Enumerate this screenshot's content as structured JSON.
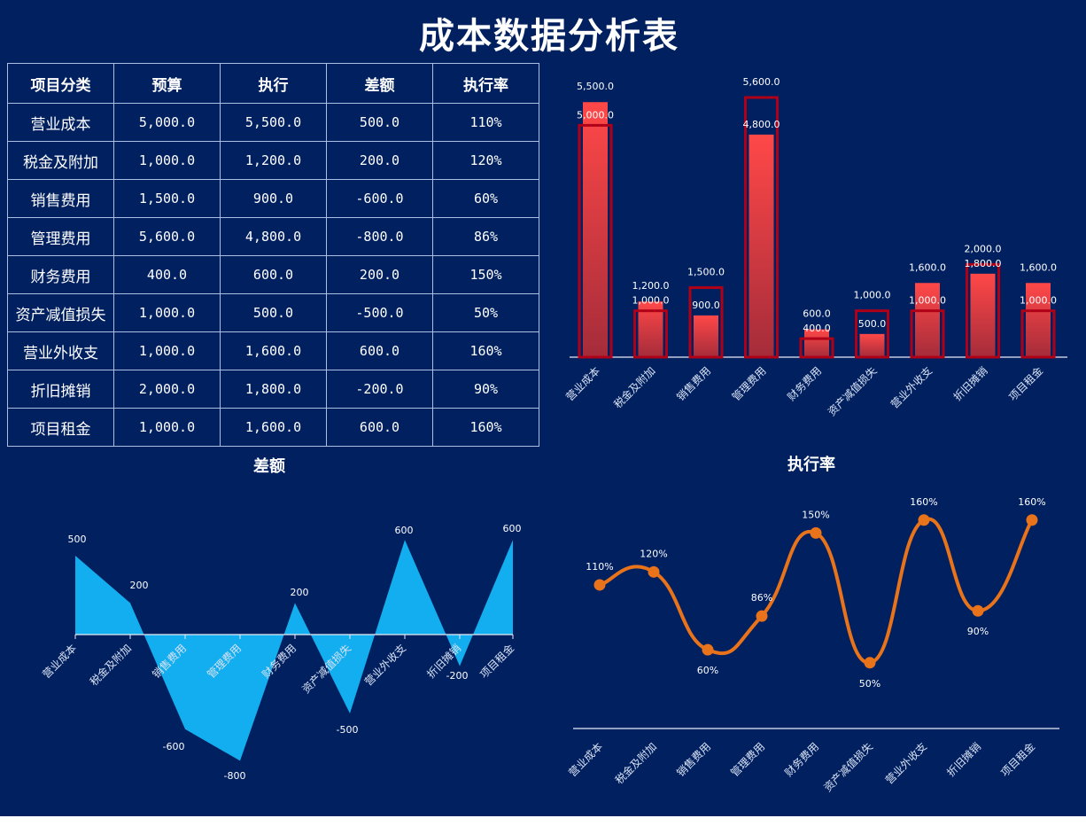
{
  "page": {
    "title": "成本数据分析表",
    "background": "#012060"
  },
  "table": {
    "headers": [
      "项目分类",
      "预算",
      "执行",
      "差额",
      "执行率"
    ],
    "rows": [
      {
        "category": "营业成本",
        "budget": "5,000.0",
        "actual": "5,500.0",
        "diff": "500.0",
        "rate": "110%"
      },
      {
        "category": "税金及附加",
        "budget": "1,000.0",
        "actual": "1,200.0",
        "diff": "200.0",
        "rate": "120%"
      },
      {
        "category": "销售费用",
        "budget": "1,500.0",
        "actual": "900.0",
        "diff": "-600.0",
        "rate": "60%"
      },
      {
        "category": "管理费用",
        "budget": "5,600.0",
        "actual": "4,800.0",
        "diff": "-800.0",
        "rate": "86%"
      },
      {
        "category": "财务费用",
        "budget": "400.0",
        "actual": "600.0",
        "diff": "200.0",
        "rate": "150%"
      },
      {
        "category": "资产减值损失",
        "budget": "1,000.0",
        "actual": "500.0",
        "diff": "-500.0",
        "rate": "50%"
      },
      {
        "category": "营业外收支",
        "budget": "1,000.0",
        "actual": "1,600.0",
        "diff": "600.0",
        "rate": "160%"
      },
      {
        "category": "折旧摊销",
        "budget": "2,000.0",
        "actual": "1,800.0",
        "diff": "-200.0",
        "rate": "90%"
      },
      {
        "category": "项目租金",
        "budget": "1,000.0",
        "actual": "1,600.0",
        "diff": "600.0",
        "rate": "160%"
      }
    ]
  },
  "chart_data": [
    {
      "type": "bar",
      "title": "",
      "categories": [
        "营业成本",
        "税金及附加",
        "销售费用",
        "管理费用",
        "财务费用",
        "资产减值损失",
        "营业外收支",
        "折旧摊销",
        "项目租金"
      ],
      "series": [
        {
          "name": "执行",
          "values": [
            5500,
            1200,
            900,
            4800,
            600,
            500,
            1600,
            1800,
            1600
          ],
          "labels": [
            "5,500.0",
            "1,200.0",
            "900.0",
            "4,800.0",
            "600.0",
            "500.0",
            "1,600.0",
            "1,800.0",
            "1,600.0"
          ],
          "style": "filled gradient",
          "color": "#ff4848"
        },
        {
          "name": "预算",
          "values": [
            5000,
            1000,
            1500,
            5600,
            400,
            1000,
            1000,
            2000,
            1000
          ],
          "labels": [
            "5,000.0",
            "1,000.0",
            "1,500.0",
            "5,600.0",
            "400.0",
            "1,000.0",
            "1,000.0",
            "2,000.0",
            "1,000.0"
          ],
          "style": "outline",
          "color": "#b00018"
        }
      ],
      "xlabel": "",
      "ylabel": "",
      "ylim": [
        0,
        5600
      ],
      "grid": false,
      "legend": "none"
    },
    {
      "type": "area",
      "title": "差额",
      "categories": [
        "营业成本",
        "税金及附加",
        "销售费用",
        "管理费用",
        "财务费用",
        "资产减值损失",
        "营业外收支",
        "折旧摊销",
        "项目租金"
      ],
      "values": [
        500,
        200,
        -600,
        -800,
        200,
        -500,
        600,
        -200,
        600
      ],
      "labels": [
        "500",
        "200",
        "-600",
        "-800",
        "200",
        "-500",
        "600",
        "-200",
        "600"
      ],
      "color": "#12aeef",
      "xlabel": "",
      "ylabel": "",
      "ylim": [
        -800,
        600
      ],
      "grid": false,
      "legend": "none"
    },
    {
      "type": "line",
      "title": "执行率",
      "categories": [
        "营业成本",
        "税金及附加",
        "销售费用",
        "管理费用",
        "财务费用",
        "资产减值损失",
        "营业外收支",
        "折旧摊销",
        "项目租金"
      ],
      "values": [
        110,
        120,
        60,
        86,
        150,
        50,
        160,
        90,
        160
      ],
      "labels": [
        "110%",
        "120%",
        "60%",
        "86%",
        "150%",
        "50%",
        "160%",
        "90%",
        "160%"
      ],
      "color": "#e8731a",
      "smooth": true,
      "xlabel": "",
      "ylabel": "",
      "ylim": [
        0,
        160
      ],
      "grid": false,
      "legend": "none"
    }
  ]
}
